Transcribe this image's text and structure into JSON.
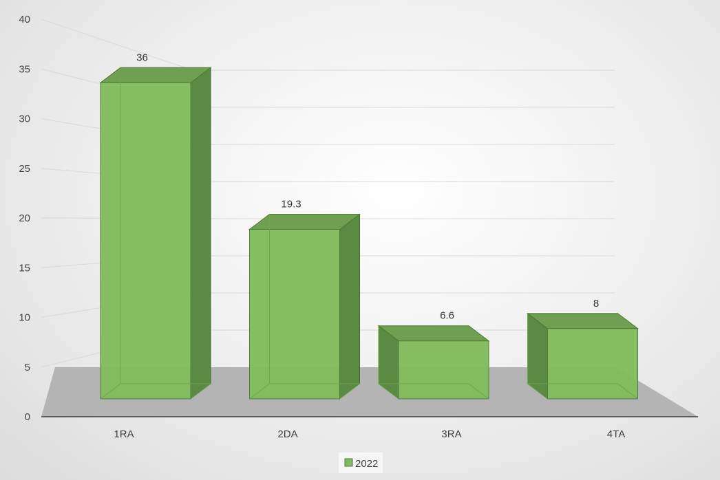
{
  "chart_data": {
    "type": "bar",
    "categories": [
      "1RA",
      "2DA",
      "3RA",
      "4TA"
    ],
    "series": [
      {
        "name": "2022",
        "values": [
          36,
          19.3,
          6.6,
          8
        ]
      }
    ],
    "data_labels": [
      "36",
      "19.3",
      "6.6",
      "8"
    ],
    "yticks": [
      "0",
      "5",
      "10",
      "15",
      "20",
      "25",
      "30",
      "35",
      "40"
    ],
    "ylim": [
      0,
      40
    ],
    "grid": true,
    "legend": "bottom",
    "style": "3d-column",
    "colors": {
      "bar_front": "#82bb5e",
      "bar_side": "#5b8a43",
      "bar_top": "#6f9f51",
      "floor": "#b4b4b4",
      "grid": "#d9d9d9"
    }
  }
}
